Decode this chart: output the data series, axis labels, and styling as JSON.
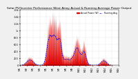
{
  "title": "Solar PV/Inverter Performance West Array Actual & Running Average Power Output",
  "title_fontsize": 3.2,
  "bg_color": "#f0f0f0",
  "plot_bg_color": "#ffffff",
  "grid_color": "#aaaaaa",
  "red_color": "#dd0000",
  "blue_color": "#0000dd",
  "legend_actual": "Actual Power (W)",
  "legend_avg": "Running Avg",
  "ylabel_fontsize": 2.8,
  "tick_fontsize": 2.5,
  "ylim_max": 1600,
  "n_points": 800,
  "yticks": [
    0,
    200,
    400,
    600,
    800,
    1000,
    1200,
    1400,
    1600
  ],
  "ytick_labels": [
    "0",
    "200",
    "400",
    "600",
    "800",
    "1k",
    "1.2k",
    "1.4k",
    "1.6k"
  ]
}
